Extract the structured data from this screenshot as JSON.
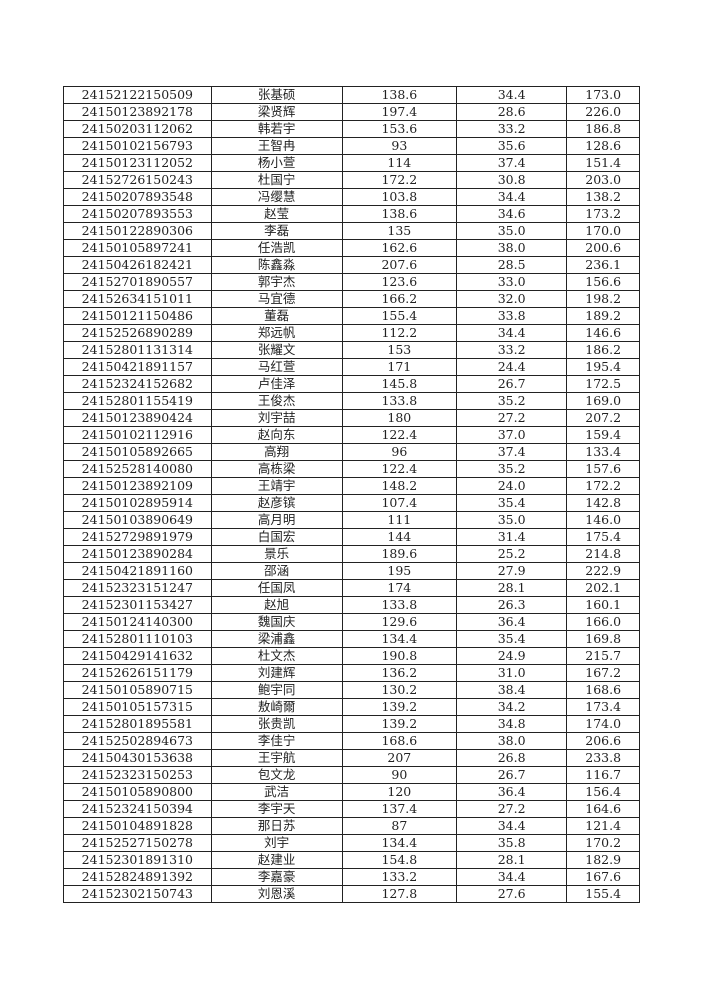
{
  "rows": [
    [
      "24152122150509",
      "张基硕",
      "138.6",
      "34.4",
      "173.0"
    ],
    [
      "24150123892178",
      "梁贤辉",
      "197.4",
      "28.6",
      "226.0"
    ],
    [
      "24150203112062",
      "韩若宇",
      "153.6",
      "33.2",
      "186.8"
    ],
    [
      "24150102156793",
      "王智冉",
      "93",
      "35.6",
      "128.6"
    ],
    [
      "24150123112052",
      "杨小萱",
      "114",
      "37.4",
      "151.4"
    ],
    [
      "24152726150243",
      "杜国宁",
      "172.2",
      "30.8",
      "203.0"
    ],
    [
      "24150207893548",
      "冯缨慧",
      "103.8",
      "34.4",
      "138.2"
    ],
    [
      "24150207893553",
      "赵莹",
      "138.6",
      "34.6",
      "173.2"
    ],
    [
      "24150122890306",
      "李磊",
      "135",
      "35.0",
      "170.0"
    ],
    [
      "24150105897241",
      "任浩凯",
      "162.6",
      "38.0",
      "200.6"
    ],
    [
      "24150426182421",
      "陈鑫淼",
      "207.6",
      "28.5",
      "236.1"
    ],
    [
      "24152701890557",
      "郭宇杰",
      "123.6",
      "33.0",
      "156.6"
    ],
    [
      "24152634151011",
      "马宜德",
      "166.2",
      "32.0",
      "198.2"
    ],
    [
      "24150121150486",
      "董磊",
      "155.4",
      "33.8",
      "189.2"
    ],
    [
      "24152526890289",
      "郑远帆",
      "112.2",
      "34.4",
      "146.6"
    ],
    [
      "24152801131314",
      "张耀文",
      "153",
      "33.2",
      "186.2"
    ],
    [
      "24150421891157",
      "马红萱",
      "171",
      "24.4",
      "195.4"
    ],
    [
      "24152324152682",
      "卢佳泽",
      "145.8",
      "26.7",
      "172.5"
    ],
    [
      "24152801155419",
      "王俊杰",
      "133.8",
      "35.2",
      "169.0"
    ],
    [
      "24150123890424",
      "刘宇喆",
      "180",
      "27.2",
      "207.2"
    ],
    [
      "24150102112916",
      "赵向东",
      "122.4",
      "37.0",
      "159.4"
    ],
    [
      "24150105892665",
      "高翔",
      "96",
      "37.4",
      "133.4"
    ],
    [
      "24152528140080",
      "高栋梁",
      "122.4",
      "35.2",
      "157.6"
    ],
    [
      "24150123892109",
      "王靖宇",
      "148.2",
      "24.0",
      "172.2"
    ],
    [
      "24150102895914",
      "赵彦镔",
      "107.4",
      "35.4",
      "142.8"
    ],
    [
      "24150103890649",
      "高月明",
      "111",
      "35.0",
      "146.0"
    ],
    [
      "24152729891979",
      "白国宏",
      "144",
      "31.4",
      "175.4"
    ],
    [
      "24150123890284",
      "景乐",
      "189.6",
      "25.2",
      "214.8"
    ],
    [
      "24150421891160",
      "邵涵",
      "195",
      "27.9",
      "222.9"
    ],
    [
      "24152323151247",
      "任国凤",
      "174",
      "28.1",
      "202.1"
    ],
    [
      "24152301153427",
      "赵旭",
      "133.8",
      "26.3",
      "160.1"
    ],
    [
      "24150124140300",
      "魏国庆",
      "129.6",
      "36.4",
      "166.0"
    ],
    [
      "24152801110103",
      "梁浦鑫",
      "134.4",
      "35.4",
      "169.8"
    ],
    [
      "24150429141632",
      "杜文杰",
      "190.8",
      "24.9",
      "215.7"
    ],
    [
      "24152626151179",
      "刘建辉",
      "136.2",
      "31.0",
      "167.2"
    ],
    [
      "24150105890715",
      "鲍宇同",
      "130.2",
      "38.4",
      "168.6"
    ],
    [
      "24150105157315",
      "敖崎爾",
      "139.2",
      "34.2",
      "173.4"
    ],
    [
      "24152801895581",
      "张贵凯",
      "139.2",
      "34.8",
      "174.0"
    ],
    [
      "24152502894673",
      "李佳宁",
      "168.6",
      "38.0",
      "206.6"
    ],
    [
      "24150430153638",
      "王宇航",
      "207",
      "26.8",
      "233.8"
    ],
    [
      "24152323150253",
      "包文龙",
      "90",
      "26.7",
      "116.7"
    ],
    [
      "24150105890800",
      "武洁",
      "120",
      "36.4",
      "156.4"
    ],
    [
      "24152324150394",
      "李宇天",
      "137.4",
      "27.2",
      "164.6"
    ],
    [
      "24150104891828",
      "那日苏",
      "87",
      "34.4",
      "121.4"
    ],
    [
      "24152527150278",
      "刘宇",
      "134.4",
      "35.8",
      "170.2"
    ],
    [
      "24152301891310",
      "赵建业",
      "154.8",
      "28.1",
      "182.9"
    ],
    [
      "24152824891392",
      "李嘉豪",
      "133.2",
      "34.4",
      "167.6"
    ],
    [
      "24152302150743",
      "刘恩溪",
      "127.8",
      "27.6",
      "155.4"
    ]
  ]
}
